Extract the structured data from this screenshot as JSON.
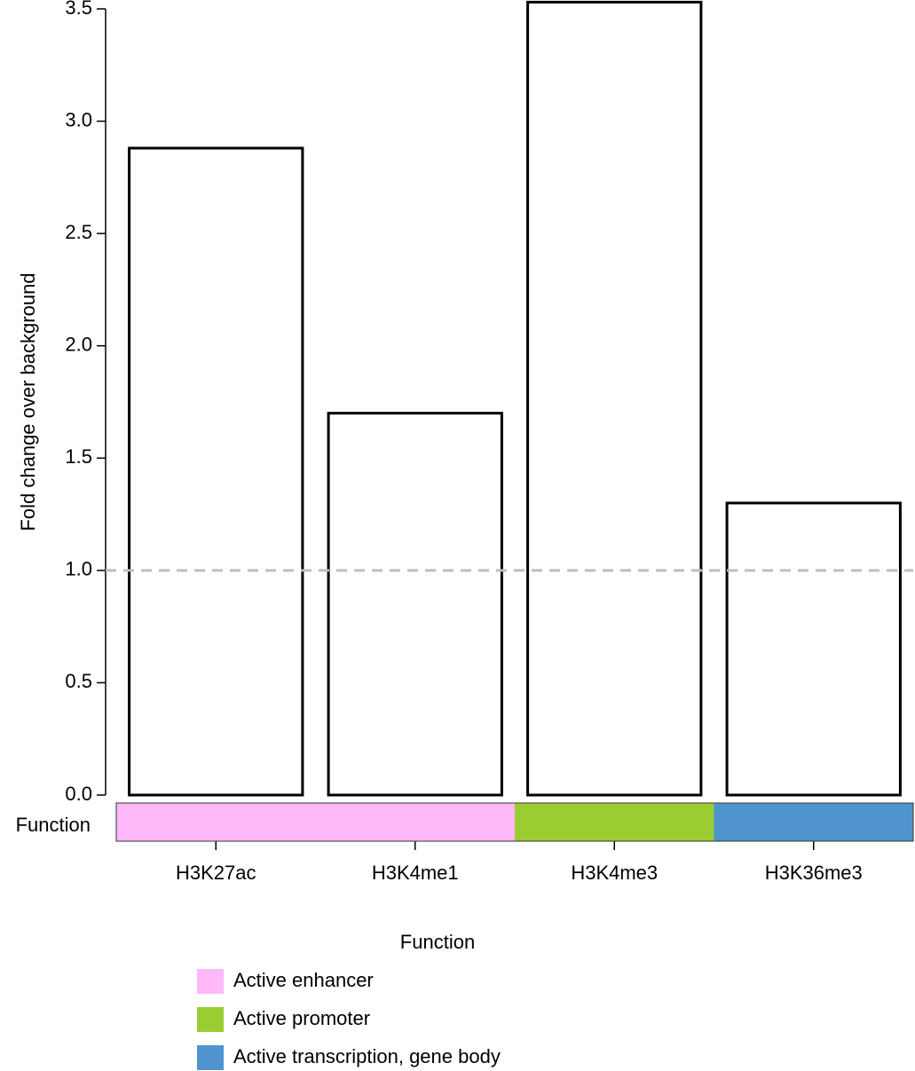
{
  "chart_data": {
    "type": "bar",
    "y_label": "Fold change over background",
    "categories": [
      "H3K27ac",
      "H3K4me1",
      "H3K4me3",
      "H3K36me3"
    ],
    "values": [
      2.88,
      1.7,
      3.53,
      1.3
    ],
    "color": "#ffffff",
    "edge_color": "#000000",
    "ylim": [
      0,
      3.5
    ],
    "yticks": [
      {
        "value": 0,
        "label": "0.0"
      },
      0.5,
      {
        "value": 1,
        "label": "1.0"
      },
      1.5,
      {
        "value": 2,
        "label": "2.0"
      },
      2.5,
      {
        "value": 3,
        "label": "3.0"
      },
      3.5
    ],
    "reference_line": 1,
    "reference_color": "#bebebe",
    "annotation_label": "Function",
    "category_function": [
      0,
      0,
      1,
      2
    ],
    "legend": {
      "title": "Function",
      "items": [
        {
          "name": "Active enhancer",
          "color": "#ffb8f9"
        },
        {
          "name": "Active promoter",
          "color": "#9acd32"
        },
        {
          "name": "Active transcription, gene body",
          "color": "#4f94cd"
        }
      ]
    }
  }
}
